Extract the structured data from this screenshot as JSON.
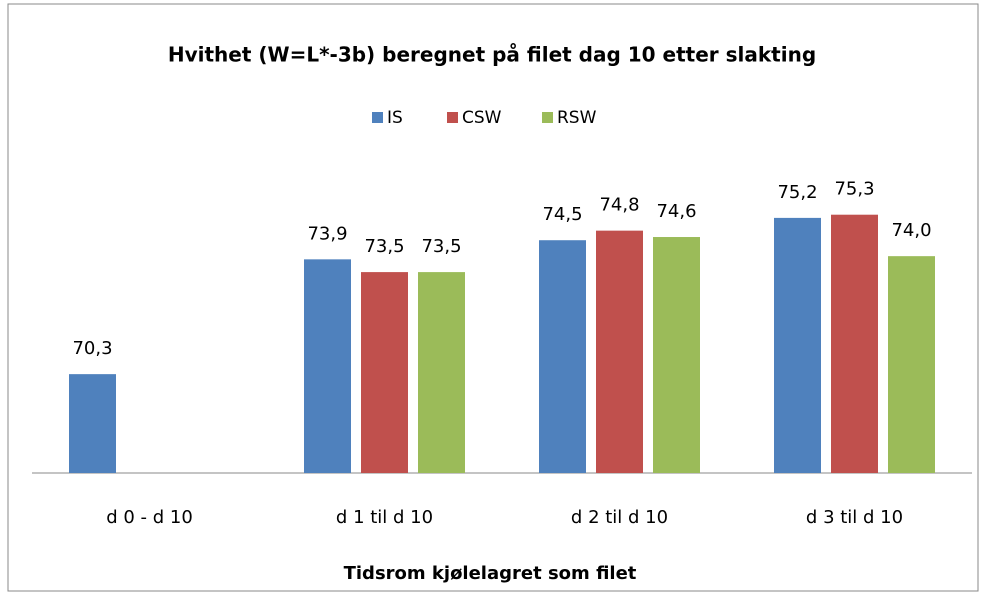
{
  "chart_data": {
    "type": "bar",
    "title": "Hvithet  (W=L*-3b) beregnet  på filet  dag 10 etter slakting",
    "x_label": "Tidsrom kjølelagret som filet",
    "categories": [
      "d 0 - d 10",
      "d 1 til d 10",
      "d 2 til d 10",
      "d 3 til d 10"
    ],
    "series": [
      {
        "name": "IS",
        "color": "#4f81bd",
        "values": [
          70.3,
          73.9,
          74.5,
          75.2
        ],
        "value_labels": [
          "70,3",
          "73,9",
          "74,5",
          "75,2"
        ]
      },
      {
        "name": "CSW",
        "color": "#c0504d",
        "values": [
          null,
          73.5,
          74.8,
          75.3
        ],
        "value_labels": [
          null,
          "73,5",
          "74,8",
          "75,3"
        ]
      },
      {
        "name": "RSW",
        "color": "#9bbb59",
        "values": [
          null,
          73.5,
          74.6,
          74.0
        ],
        "value_labels": [
          null,
          "73,5",
          "74,6",
          "74,0"
        ]
      }
    ],
    "ylim": [
      67.2,
      76.2
    ],
    "legend": "top"
  }
}
